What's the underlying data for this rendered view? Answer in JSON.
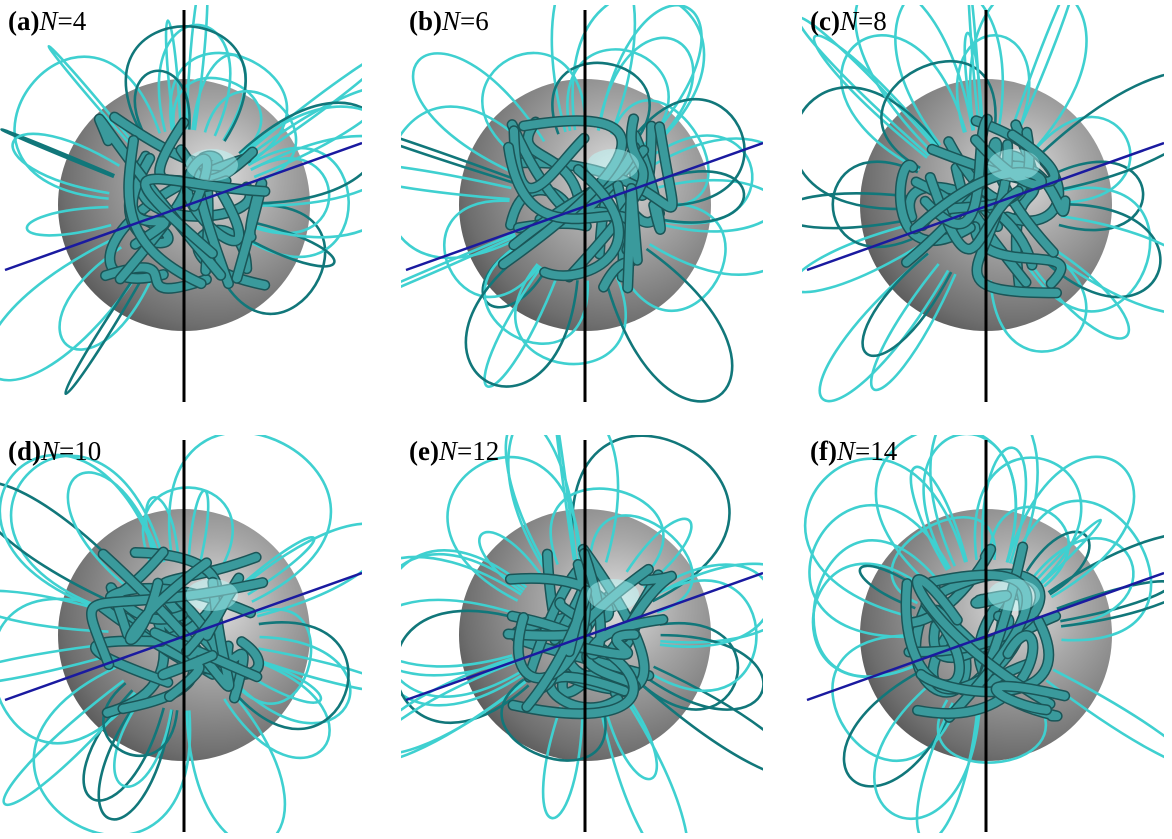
{
  "panels": [
    {
      "tag": "(a)",
      "symbol": "N",
      "rest": "=4"
    },
    {
      "tag": "(b)",
      "symbol": "N",
      "rest": "=6"
    },
    {
      "tag": "(c)",
      "symbol": "N",
      "rest": "=8"
    },
    {
      "tag": "(d)",
      "symbol": "N",
      "rest": "=10"
    },
    {
      "tag": "(e)",
      "symbol": "N",
      "rest": "=12"
    },
    {
      "tag": "(f)",
      "symbol": "N",
      "rest": "=14"
    }
  ]
}
